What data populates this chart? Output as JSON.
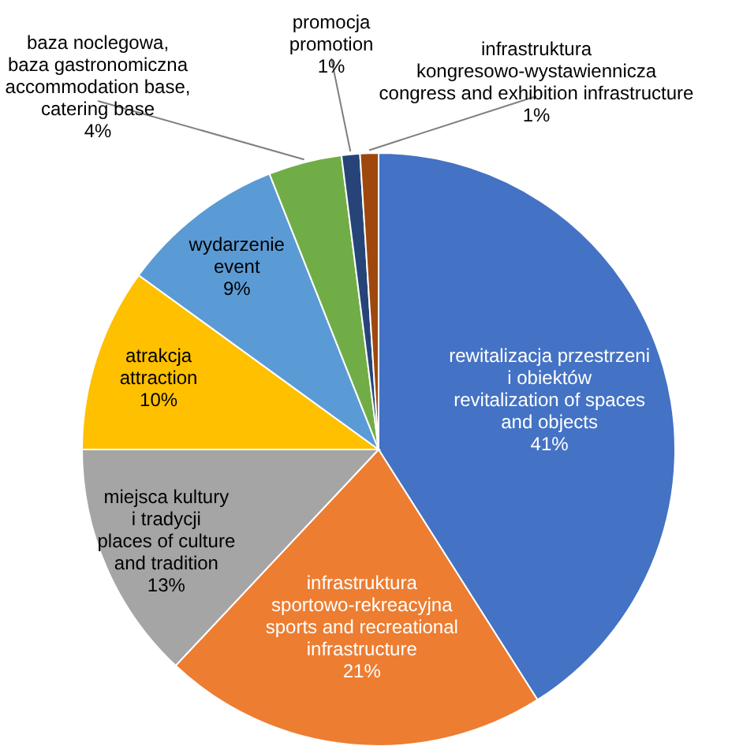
{
  "chart_data": {
    "type": "pie",
    "categories": [
      "rewitalizacja przestrzeni\ni obiektów\nrevitalization of spaces\nand objects",
      "infrastruktura\nsportowo-rekreacyjna\nsports and recreational\ninfrastructure",
      "miejsca kultury\ni tradycji\nplaces of culture\nand tradition",
      "atrakcja\nattraction",
      "wydarzenie\nevent",
      "baza noclegowa,\nbaza gastronomiczna\naccommodation base,\ncatering base",
      "promocja\npromotion",
      "infrastruktura\nkongresowo-wystawiennicza\ncongress and exhibition infrastructure"
    ],
    "values": [
      41,
      21,
      13,
      10,
      9,
      4,
      1,
      1
    ],
    "value_labels": [
      "41%",
      "21%",
      "13%",
      "10%",
      "9%",
      "4%",
      "1%",
      "1%"
    ],
    "colors": [
      "#4472c4",
      "#ed7d31",
      "#a5a5a5",
      "#ffc000",
      "#5b9bd5",
      "#70ad47",
      "#264478",
      "#9e480e"
    ]
  }
}
